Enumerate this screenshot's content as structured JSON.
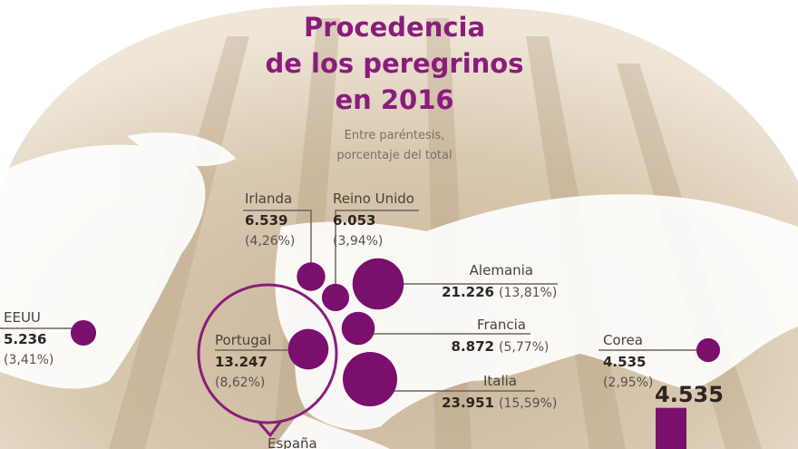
{
  "title_lines": [
    "Procedencia",
    "de los peregrinos",
    "en 2016"
  ],
  "subtitle_lines": [
    "Entre paréntesis,",
    "porcentaje del total"
  ],
  "countries": [
    {
      "name": "Irlanda",
      "value": 6539,
      "value_label": "6.539",
      "share": "(4,26%)"
    },
    {
      "name": "Reino Unido",
      "value": 6053,
      "value_label": "6.053",
      "share": "(3,94%)"
    },
    {
      "name": "Alemania",
      "value": 21226,
      "value_label": "21.226",
      "share": "(13,81%)"
    },
    {
      "name": "EEUU",
      "value": 5236,
      "value_label": "5.236",
      "share": "(3,41%)"
    },
    {
      "name": "Francia",
      "value": 8872,
      "value_label": "8.872",
      "share": "(5,77%)"
    },
    {
      "name": "Portugal",
      "value": 13247,
      "value_label": "13.247",
      "share": "(8,62%)"
    },
    {
      "name": "Italia",
      "value": 23951,
      "value_label": "23.951",
      "share": "(15,59%)"
    },
    {
      "name": "Corea",
      "value": 4535,
      "value_label": "4.535",
      "share": "(2,95%)"
    }
  ],
  "bar": {
    "value": 4535,
    "label": "4.535"
  },
  "footer_label": "España"
}
